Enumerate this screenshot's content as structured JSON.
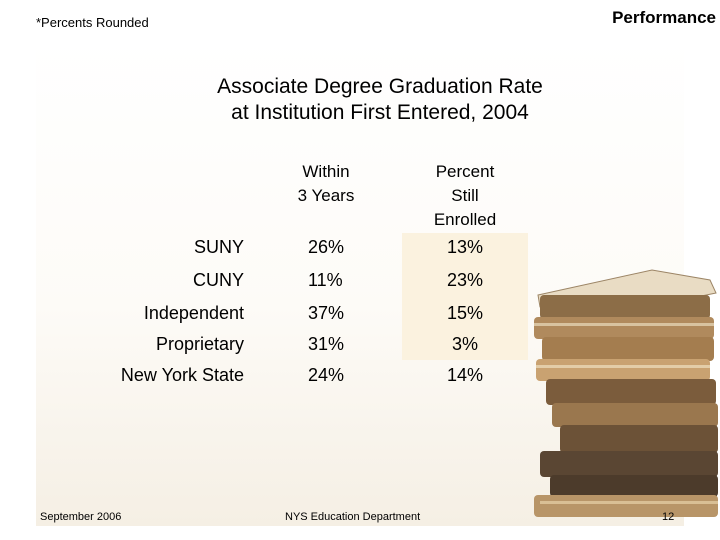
{
  "note": "*Percents Rounded",
  "section": "Performance",
  "title": {
    "line1": "Associate Degree Graduation Rate",
    "line2": "at Institution First Entered, 2004"
  },
  "headers": {
    "within": [
      "Within",
      "3 Years"
    ],
    "percent": [
      "Percent",
      "Still",
      "Enrolled"
    ]
  },
  "rows": [
    {
      "label": "SUNY",
      "within": "26%",
      "enrolled": "13%"
    },
    {
      "label": "CUNY",
      "within": "11%",
      "enrolled": "23%"
    },
    {
      "label": "Independent",
      "within": "37%",
      "enrolled": "15%"
    },
    {
      "label": "Proprietary",
      "within": "31%",
      "enrolled": "3%"
    },
    {
      "label": "New York State",
      "within": "24%",
      "enrolled": "14%"
    }
  ],
  "footer": {
    "date": "September 2006",
    "org": "NYS Education Department",
    "page": "12"
  },
  "colors": {
    "highlight": "#fbf2df",
    "book_spine": "#8a6a44"
  },
  "image": {
    "icon": "book-stack-icon"
  }
}
